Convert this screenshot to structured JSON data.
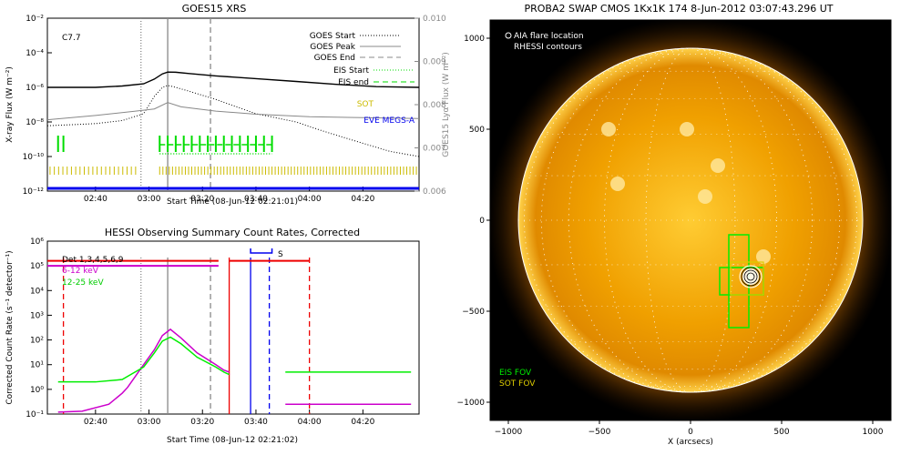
{
  "panels": {
    "goes": {
      "title": "GOES15 XRS",
      "class_label": "C7.7",
      "xlabel": "Start Time (08-Jun-12 02:21:01)",
      "ylabel_left": "X-ray Flux (W m⁻²)",
      "ylabel_right": "GOES15 Lyα Flux (W m⁻²)",
      "legend": [
        "GOES Start",
        "GOES Peak",
        "GOES End",
        "EIS Start",
        "EIS end",
        "SOT",
        "EVE MEGS-A"
      ],
      "colors": {
        "eis": "#00dd00",
        "sot": "#ccbb00",
        "eve": "#0000ee"
      }
    },
    "hessi": {
      "title": "HESSI Observing Summary Count Rates, Corrected",
      "xlabel": "Start Time (08-Jun-12 02:21:02)",
      "ylabel": "Corrected Count Rate (s⁻¹ detector⁻¹)",
      "legend": [
        "Det 1,3,4,5,6,9",
        "6-12 keV",
        "12-25 keV"
      ],
      "s_label": "S",
      "colors": {
        "low": "#cc00cc",
        "high": "#00ee00",
        "red": "#ee0000",
        "blue": "#0000ee"
      }
    },
    "swap": {
      "title": "PROBA2 SWAP CMOS 1Kx1K 174   8-Jun-2012 03:07:43.296 UT",
      "legend": [
        "AIA flare location",
        "RHESSI contours"
      ],
      "fov_labels": [
        "EIS FOV",
        "SOT FOV"
      ],
      "xlabel": "X (arcsecs)"
    }
  },
  "chart_data": [
    {
      "type": "line",
      "title": "GOES15 XRS",
      "xlabel": "Start Time (08-Jun-12 02:21:01)",
      "x_ticks": [
        "02:40",
        "03:00",
        "03:20",
        "03:40",
        "04:00",
        "04:20"
      ],
      "x_tick_minutes": [
        140,
        160,
        180,
        200,
        220,
        240
      ],
      "xlim_minutes": [
        122,
        261
      ],
      "y_scale": "log",
      "ylim": [
        1e-12,
        0.01
      ],
      "y_ticks": [
        "10⁻¹²",
        "10⁻¹⁰",
        "10⁻⁸",
        "10⁻⁶",
        "10⁻⁴",
        "10⁻²"
      ],
      "y_right_ticks": [
        "0.006",
        "0.007",
        "0.008",
        "0.009",
        "0.010"
      ],
      "vlines": [
        {
          "name": "GOES Start",
          "minute": 157,
          "style": "dotted"
        },
        {
          "name": "GOES Peak",
          "minute": 167,
          "style": "solid"
        },
        {
          "name": "GOES End",
          "minute": 183,
          "style": "dashed"
        }
      ],
      "series": [
        {
          "name": "GOES long",
          "x": [
            122,
            140,
            150,
            158,
            162,
            165,
            167,
            170,
            175,
            185,
            200,
            215,
            230,
            245,
            261
          ],
          "y": [
            1e-06,
            1e-06,
            1.2e-06,
            1.6e-06,
            3e-06,
            6e-06,
            7.7e-06,
            7.5e-06,
            6.3e-06,
            4.6e-06,
            3.2e-06,
            2.2e-06,
            1.5e-06,
            1.1e-06,
            1e-06
          ]
        },
        {
          "name": "GOES short",
          "x": [
            122,
            140,
            150,
            158,
            162,
            165,
            167,
            170,
            175,
            185,
            200,
            215,
            225,
            235,
            250,
            261
          ],
          "y": [
            6e-09,
            8e-09,
            1.2e-08,
            3e-08,
            3e-07,
            1e-06,
            1.3e-06,
            1e-06,
            6e-07,
            2e-07,
            3e-08,
            1e-08,
            3e-09,
            1e-09,
            2e-10,
            1e-10
          ]
        },
        {
          "name": "Lyα",
          "x": [
            122,
            140,
            155,
            162,
            167,
            172,
            185,
            200,
            220,
            240,
            261
          ],
          "y": [
            0.00765,
            0.00775,
            0.00785,
            0.0079,
            0.00805,
            0.00795,
            0.00785,
            0.00778,
            0.00772,
            0.0077,
            0.00768
          ]
        }
      ]
    },
    {
      "type": "line",
      "title": "HESSI Observing Summary Count Rates, Corrected",
      "xlabel": "Start Time (08-Jun-12 02:21:02)",
      "x_ticks": [
        "02:40",
        "03:00",
        "03:20",
        "03:40",
        "04:00",
        "04:20"
      ],
      "x_tick_minutes": [
        140,
        160,
        180,
        200,
        220,
        240
      ],
      "xlim_minutes": [
        122,
        261
      ],
      "y_scale": "log",
      "ylim": [
        0.1,
        1000000.0
      ],
      "y_ticks": [
        "10⁻¹",
        "10⁰",
        "10¹",
        "10²",
        "10³",
        "10⁴",
        "10⁵",
        "10⁶"
      ],
      "series": [
        {
          "name": "6-12 keV",
          "x": [
            126,
            135,
            145,
            150,
            152,
            158,
            162,
            165,
            168,
            172,
            178,
            185,
            188,
            190
          ],
          "y": [
            0.12,
            0.13,
            0.25,
            0.7,
            1.2,
            10,
            40,
            150,
            270,
            120,
            30,
            10,
            6,
            5
          ]
        },
        {
          "name": "6-12 keV (late)",
          "x": [
            211,
            230,
            250,
            258
          ],
          "y": [
            0.25,
            0.25,
            0.25,
            0.25
          ]
        },
        {
          "name": "12-25 keV",
          "x": [
            126,
            140,
            150,
            158,
            162,
            165,
            168,
            172,
            178,
            185,
            188,
            190
          ],
          "y": [
            2,
            2,
            2.5,
            8,
            30,
            90,
            130,
            70,
            20,
            8,
            5,
            4
          ]
        },
        {
          "name": "12-25 keV (late)",
          "x": [
            211,
            230,
            250,
            258
          ],
          "y": [
            5,
            5,
            5,
            5
          ]
        }
      ],
      "vlines": [
        {
          "name": "start",
          "minute": 128,
          "style": "dashed",
          "color": "red"
        },
        {
          "name": "start",
          "minute": 157,
          "style": "dotted",
          "color": "gray"
        },
        {
          "name": "peak",
          "minute": 167,
          "style": "solid",
          "color": "gray"
        },
        {
          "name": "end",
          "minute": 183,
          "style": "dashed",
          "color": "gray"
        },
        {
          "name": "red solid",
          "minute": 190,
          "style": "solid",
          "color": "red"
        },
        {
          "name": "blue solid",
          "minute": 198,
          "style": "solid",
          "color": "blue"
        },
        {
          "name": "blue dashed",
          "minute": 205,
          "style": "dashed",
          "color": "blue"
        },
        {
          "name": "end",
          "minute": 220,
          "style": "dashed",
          "color": "red"
        }
      ]
    },
    {
      "type": "scatter",
      "title": "PROBA2 SWAP CMOS 1Kx1K 174   8-Jun-2012 03:07:43.296 UT",
      "xlabel": "X (arcsecs)",
      "x_ticks": [
        -1000,
        -500,
        0,
        500,
        1000
      ],
      "y_ticks": [
        -1000,
        -500,
        0,
        500,
        1000
      ],
      "xlim": [
        -1100,
        1100
      ],
      "ylim": [
        -1100,
        1100
      ],
      "sun_radius_arcsec": 945,
      "flare_location": [
        330,
        -310
      ],
      "eis_fov_center": [
        265,
        -330
      ],
      "sot_fov_center": [
        310,
        -320
      ]
    }
  ]
}
